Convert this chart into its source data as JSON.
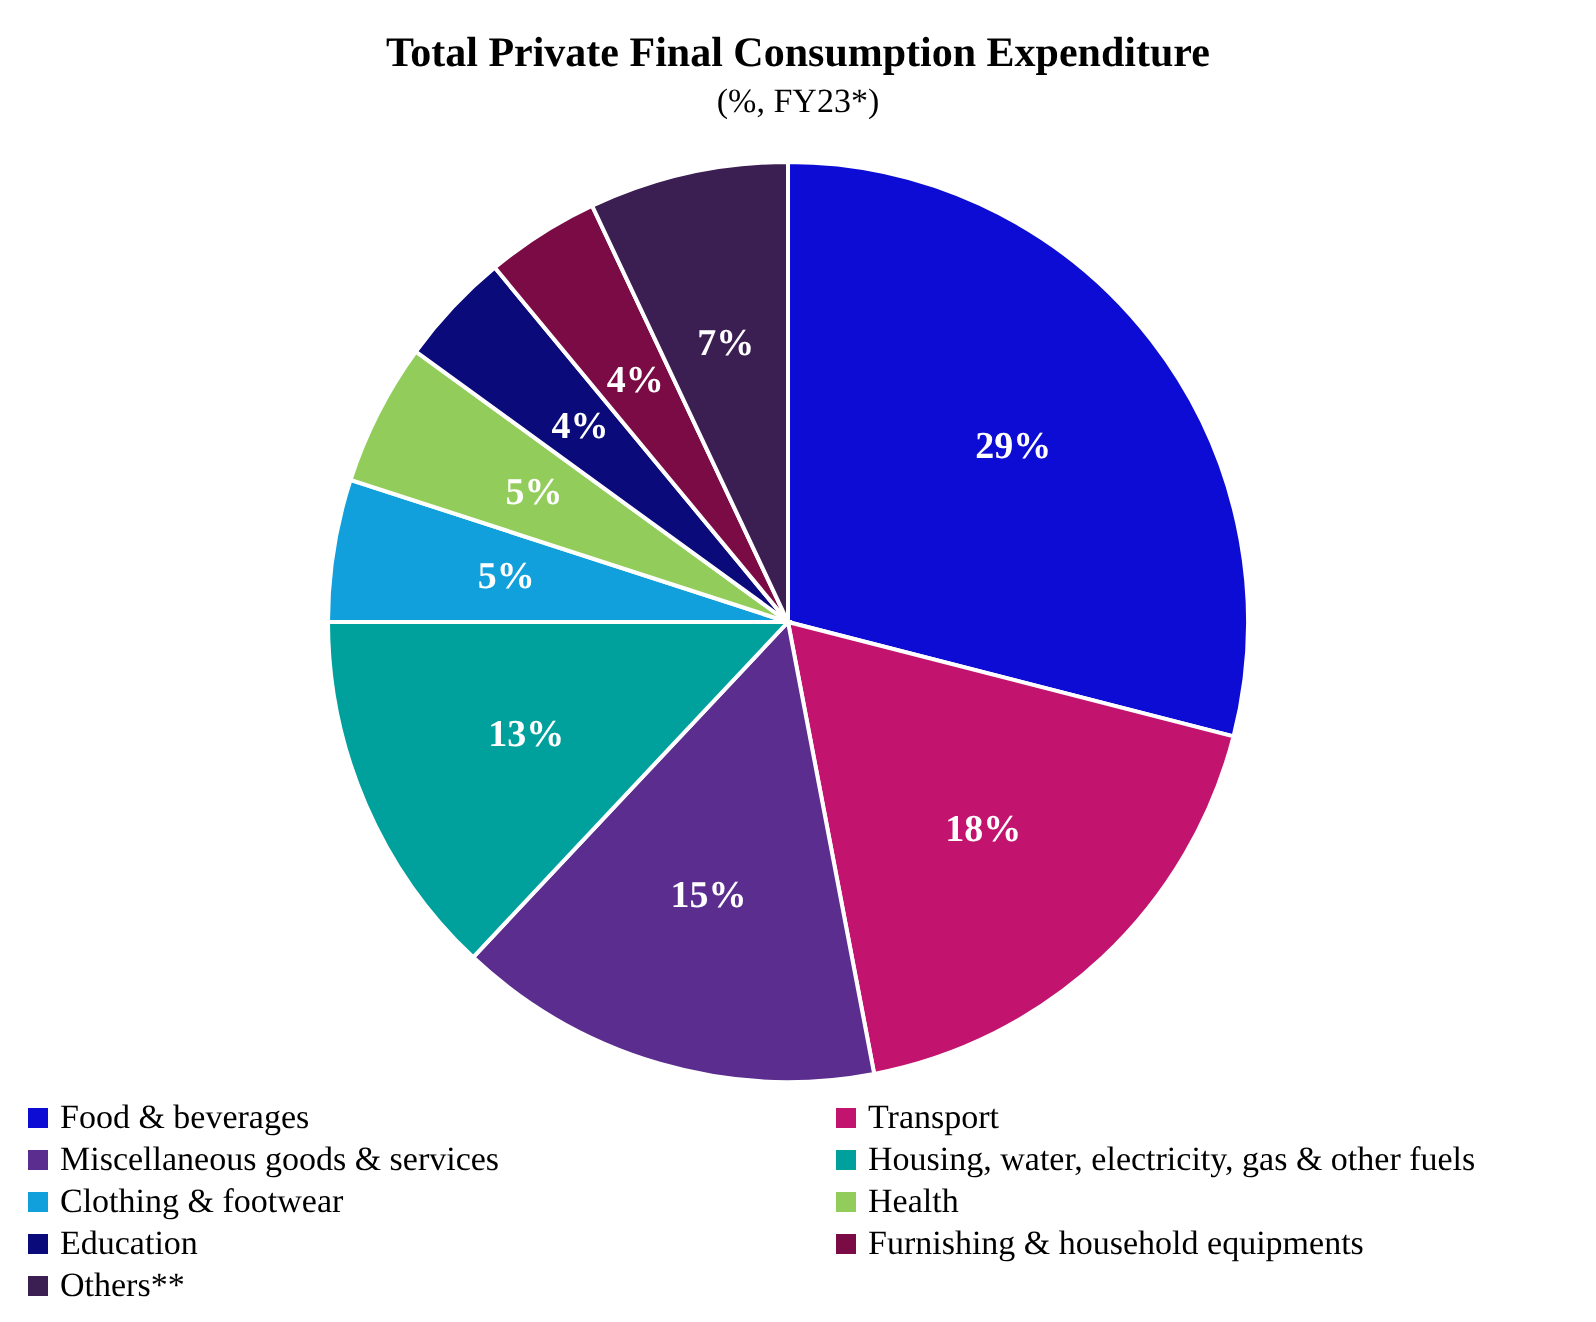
{
  "chart_data": {
    "type": "pie",
    "title": "Total Private Final Consumption Expenditure",
    "subtitle": "(%, FY23*)",
    "categories": [
      "Food & beverages",
      "Transport",
      "Miscellaneous goods & services",
      "Housing, water, electricity, gas & other fuels",
      "Clothing & footwear",
      "Health",
      "Education",
      "Furnishing & household equipments",
      "Others**"
    ],
    "values": [
      29,
      18,
      15,
      13,
      5,
      5,
      4,
      4,
      7
    ],
    "value_labels": [
      "29%",
      "18%",
      "15%",
      "13%",
      "5%",
      "5%",
      "4%",
      "4%",
      "7%"
    ],
    "colors": [
      "#0c0cd4",
      "#c2136f",
      "#5b2d8e",
      "#00a19c",
      "#11a0dc",
      "#92cd5b",
      "#0a0a7a",
      "#7a0b45",
      "#3b1e52"
    ],
    "legend": "bottom"
  }
}
